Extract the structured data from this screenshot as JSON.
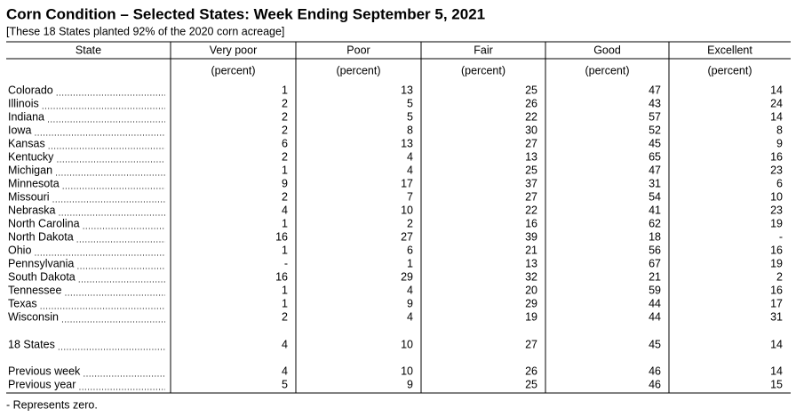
{
  "title": "Corn Condition – Selected States: Week Ending September 5, 2021",
  "subtitle": "[These 18 States planted 92% of the 2020 corn acreage]",
  "table": {
    "columns": [
      "State",
      "Very poor",
      "Poor",
      "Fair",
      "Good",
      "Excellent"
    ],
    "units": [
      "(percent)",
      "(percent)",
      "(percent)",
      "(percent)",
      "(percent)"
    ],
    "rows": [
      [
        "Colorado",
        1,
        13,
        25,
        47,
        14
      ],
      [
        "Illinois",
        2,
        5,
        26,
        43,
        24
      ],
      [
        "Indiana",
        2,
        5,
        22,
        57,
        14
      ],
      [
        "Iowa",
        2,
        8,
        30,
        52,
        8
      ],
      [
        "Kansas",
        6,
        13,
        27,
        45,
        9
      ],
      [
        "Kentucky",
        2,
        4,
        13,
        65,
        16
      ],
      [
        "Michigan",
        1,
        4,
        25,
        47,
        23
      ],
      [
        "Minnesota",
        9,
        17,
        37,
        31,
        6
      ],
      [
        "Missouri",
        2,
        7,
        27,
        54,
        10
      ],
      [
        "Nebraska",
        4,
        10,
        22,
        41,
        23
      ],
      [
        "North Carolina",
        1,
        2,
        16,
        62,
        19
      ],
      [
        "North Dakota",
        16,
        27,
        39,
        18,
        "-"
      ],
      [
        "Ohio",
        1,
        6,
        21,
        56,
        16
      ],
      [
        "Pennsylvania",
        "-",
        1,
        13,
        67,
        19
      ],
      [
        "South Dakota",
        16,
        29,
        32,
        21,
        2
      ],
      [
        "Tennessee",
        1,
        4,
        20,
        59,
        16
      ],
      [
        "Texas",
        1,
        9,
        29,
        44,
        17
      ],
      [
        "Wisconsin",
        2,
        4,
        19,
        44,
        31
      ]
    ],
    "total_row": [
      "18 States",
      4,
      10,
      27,
      45,
      14
    ],
    "comparison_rows": [
      [
        "Previous week",
        4,
        10,
        26,
        46,
        14
      ],
      [
        "Previous year",
        5,
        9,
        25,
        46,
        15
      ]
    ]
  },
  "footnote": "- Represents zero."
}
